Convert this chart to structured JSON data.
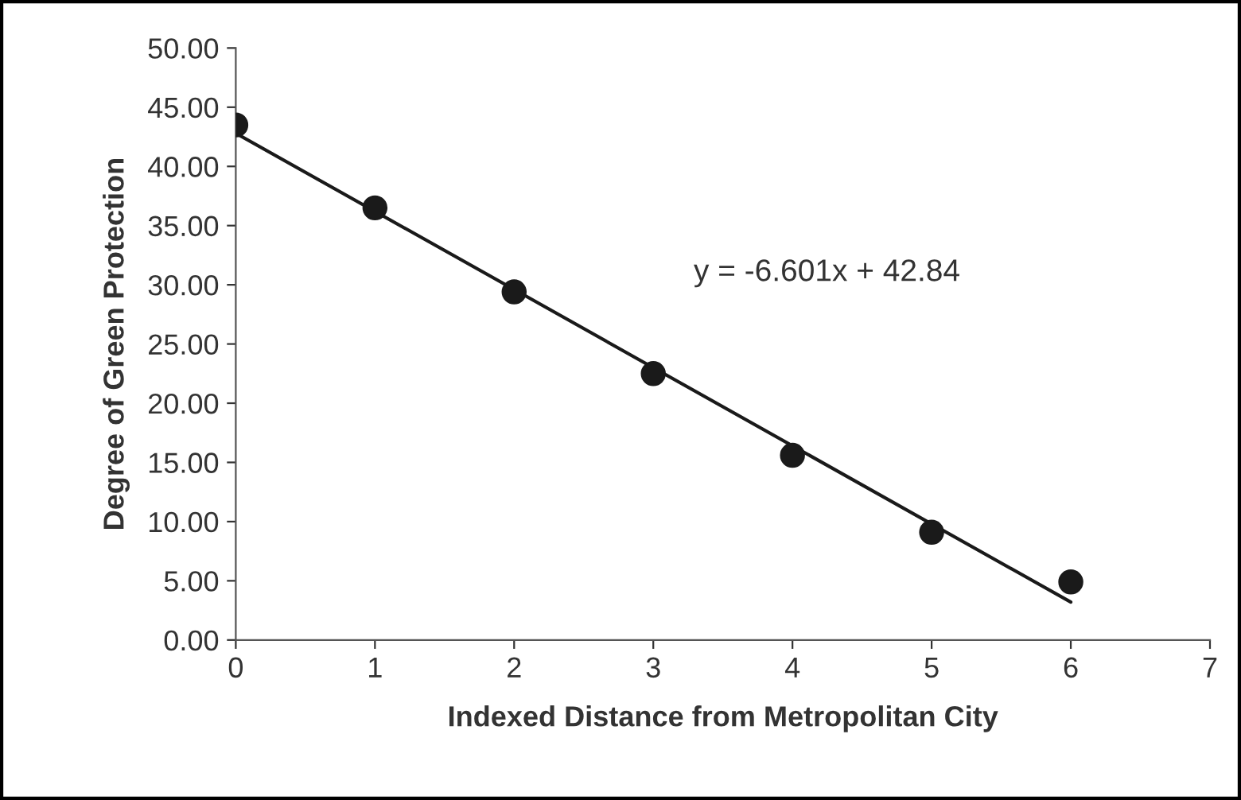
{
  "chart_data": {
    "type": "scatter",
    "xlabel": "Indexed Distance from Metropolitan City",
    "ylabel": "Degree of Green Protection",
    "series": [
      {
        "color": "#1a1a1a",
        "x": [
          0,
          1,
          2,
          3,
          4,
          5,
          6
        ],
        "values": [
          43.5,
          36.5,
          29.4,
          22.5,
          15.6,
          9.1,
          4.9
        ],
        "marker": "circle"
      },
      {
        "type": "line",
        "color": "#1a1a1a",
        "x": [
          0,
          6
        ],
        "values": [
          42.8,
          3.2
        ],
        "marker": "none",
        "line_style": "solid"
      }
    ],
    "annotations": [
      "y = -6.601x + 42.84"
    ],
    "xlim": [
      0,
      7
    ],
    "xticks": [
      0,
      1,
      2,
      3,
      4,
      5,
      6,
      7
    ],
    "ylim": [
      0,
      50
    ],
    "yticks": [
      {
        "value": 0,
        "label": "0.00"
      },
      {
        "value": 5,
        "label": "5.00"
      },
      {
        "value": 10,
        "label": "10.00"
      },
      {
        "value": 15,
        "label": "15.00"
      },
      {
        "value": 20,
        "label": "20.00"
      },
      {
        "value": 25,
        "label": "25.00"
      },
      {
        "value": 30,
        "label": "30.00"
      },
      {
        "value": 35,
        "label": "35.00"
      },
      {
        "value": 40,
        "label": "40.00"
      },
      {
        "value": 45,
        "label": "45.00"
      },
      {
        "value": 50,
        "label": "50.00"
      }
    ],
    "grid": false,
    "legend": false
  }
}
